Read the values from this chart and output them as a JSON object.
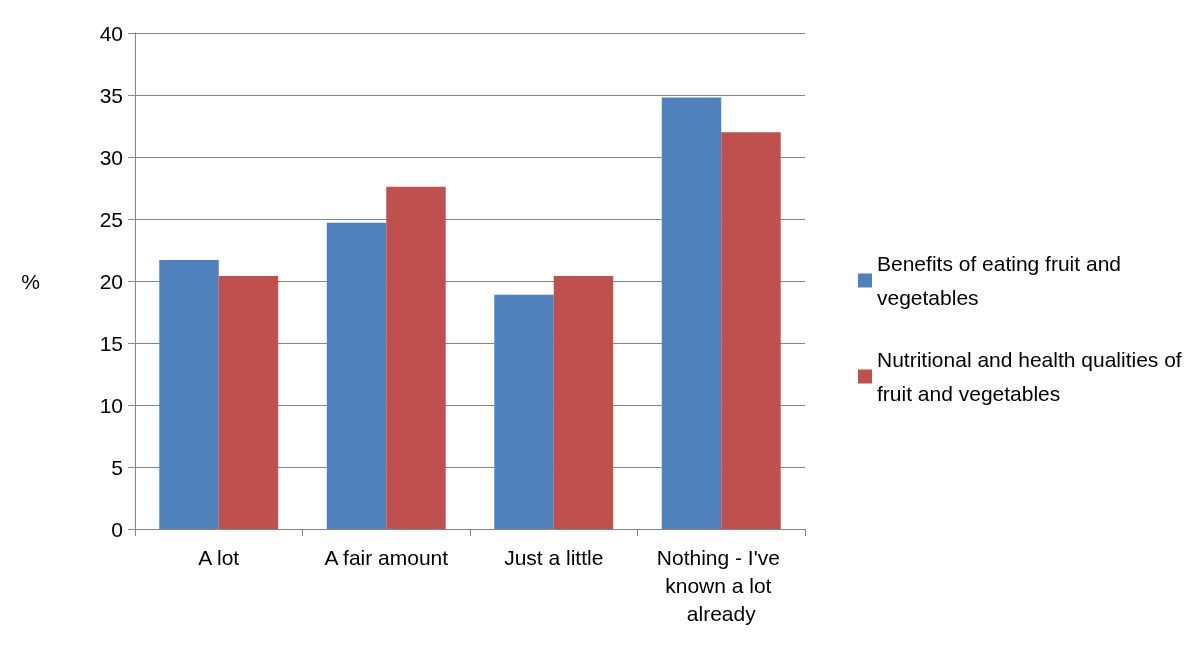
{
  "chart_data": {
    "type": "bar",
    "ylabel": "%",
    "categories": [
      "A lot",
      "A fair amount",
      "Just a little",
      "Nothing - I've known a lot already"
    ],
    "series": [
      {
        "name": "Benefits of eating fruit and vegetables",
        "color": "#4f81bd",
        "values": [
          21.7,
          24.7,
          18.9,
          34.8
        ]
      },
      {
        "name": "Nutritional and health qualities of fruit and vegetables",
        "color": "#c0504d",
        "values": [
          20.4,
          27.6,
          20.4,
          32.0
        ]
      }
    ],
    "ylim": [
      0,
      40
    ],
    "yticks": [
      0,
      5,
      10,
      15,
      20,
      25,
      30,
      35,
      40
    ],
    "grid": "y",
    "legend": "right"
  }
}
